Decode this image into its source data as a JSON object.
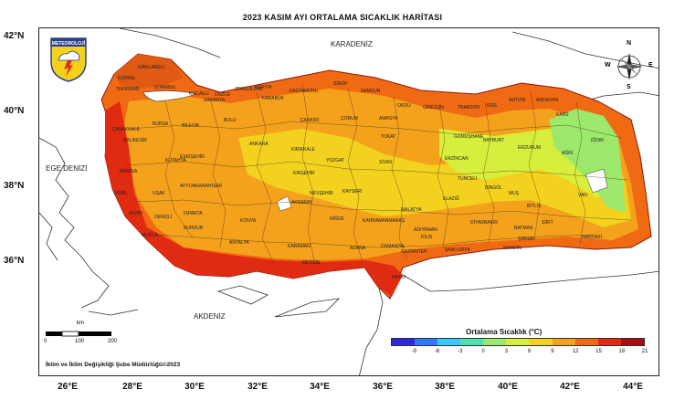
{
  "title": "2023 KASIM AYI ORTALAMA SICAKLIK HARİTASI",
  "latitudes": [
    "42°N",
    "40°N",
    "38°N",
    "36°N"
  ],
  "longitudes": [
    "26°E",
    "28°E",
    "30°E",
    "32°E",
    "34°E",
    "36°E",
    "38°E",
    "40°E",
    "42°E",
    "44°E"
  ],
  "seas": {
    "north": "KARADENİZ",
    "west": "EGE DENİZİ",
    "south": "AKDENİZ"
  },
  "logo_text": "METEOROLOJİ",
  "compass": {
    "n": "N",
    "e": "E",
    "s": "S",
    "w": "W"
  },
  "scale": {
    "unit": "km",
    "ticks": [
      "0",
      "100",
      "200"
    ]
  },
  "credit": "İklim ve İklim Değişikliği Şube Müdürlüğü©2023",
  "legend": {
    "title": "Ortalama Sıcaklık (°C)",
    "ticks": [
      "-9",
      "-6",
      "-3",
      "0",
      "3",
      "6",
      "9",
      "12",
      "15",
      "18",
      "21"
    ],
    "colors": [
      "#2a2ad8",
      "#2f7bff",
      "#38c8ff",
      "#4fe0b0",
      "#9be86a",
      "#d8ee3c",
      "#f2d21e",
      "#f4a21c",
      "#f06a14",
      "#e02a12",
      "#a50f0f"
    ]
  },
  "cities": [
    {
      "name": "KIRKLARELİ"
    },
    {
      "name": "EDİRNE"
    },
    {
      "name": "TEKİRDAĞ"
    },
    {
      "name": "İSTANBUL"
    },
    {
      "name": "KOCAELİ"
    },
    {
      "name": "SAKARYA"
    },
    {
      "name": "DÜZCE"
    },
    {
      "name": "ZONGULDAK"
    },
    {
      "name": "BARTIN"
    },
    {
      "name": "KASTAMONU"
    },
    {
      "name": "SİNOP"
    },
    {
      "name": "SAMSUN"
    },
    {
      "name": "ORDU"
    },
    {
      "name": "GİRESUN"
    },
    {
      "name": "TRABZON"
    },
    {
      "name": "RİZE"
    },
    {
      "name": "ARTVİN"
    },
    {
      "name": "ARDAHAN"
    },
    {
      "name": "KARS"
    },
    {
      "name": "IĞDIR"
    },
    {
      "name": "ÇANAKKALE"
    },
    {
      "name": "BALIKESİR"
    },
    {
      "name": "BURSA"
    },
    {
      "name": "BİLECİK"
    },
    {
      "name": "BOLU"
    },
    {
      "name": "KARABÜK"
    },
    {
      "name": "ÇANKIRI"
    },
    {
      "name": "ÇORUM"
    },
    {
      "name": "AMASYA"
    },
    {
      "name": "TOKAT"
    },
    {
      "name": "GÜMÜŞHANE"
    },
    {
      "name": "BAYBURT"
    },
    {
      "name": "ERZURUM"
    },
    {
      "name": "AĞRI"
    },
    {
      "name": "ESKİŞEHİR"
    },
    {
      "name": "KÜTAHYA"
    },
    {
      "name": "ANKARA"
    },
    {
      "name": "KIRIKKALE"
    },
    {
      "name": "YOZGAT"
    },
    {
      "name": "SİVAS"
    },
    {
      "name": "ERZİNCAN"
    },
    {
      "name": "TUNCELİ"
    },
    {
      "name": "BİNGÖL"
    },
    {
      "name": "MUŞ"
    },
    {
      "name": "MANİSA"
    },
    {
      "name": "İZMİR"
    },
    {
      "name": "UŞAK"
    },
    {
      "name": "AFYONKARAHİSAR"
    },
    {
      "name": "KIRŞEHİR"
    },
    {
      "name": "NEVŞEHİR"
    },
    {
      "name": "KAYSERİ"
    },
    {
      "name": "MALATYA"
    },
    {
      "name": "ELAZIĞ"
    },
    {
      "name": "BİTLİS"
    },
    {
      "name": "VAN"
    },
    {
      "name": "AYDIN"
    },
    {
      "name": "DENİZLİ"
    },
    {
      "name": "KONYA"
    },
    {
      "name": "AKSARAY"
    },
    {
      "name": "NİĞDE"
    },
    {
      "name": "KAHRAMANMARAŞ"
    },
    {
      "name": "ADIYAMAN"
    },
    {
      "name": "DİYARBAKIR"
    },
    {
      "name": "BATMAN"
    },
    {
      "name": "SİİRT"
    },
    {
      "name": "HAKKARİ"
    },
    {
      "name": "ŞIRNAK"
    },
    {
      "name": "MUĞLA"
    },
    {
      "name": "BURDUR"
    },
    {
      "name": "ISPARTA"
    },
    {
      "name": "KARAMAN"
    },
    {
      "name": "MERSİN"
    },
    {
      "name": "ADANA"
    },
    {
      "name": "OSMANİYE"
    },
    {
      "name": "GAZİANTEP"
    },
    {
      "name": "ŞANLIURFA"
    },
    {
      "name": "MARDİN"
    },
    {
      "name": "HATAY"
    },
    {
      "name": "ANTALYA"
    },
    {
      "name": "KİLİS"
    }
  ]
}
